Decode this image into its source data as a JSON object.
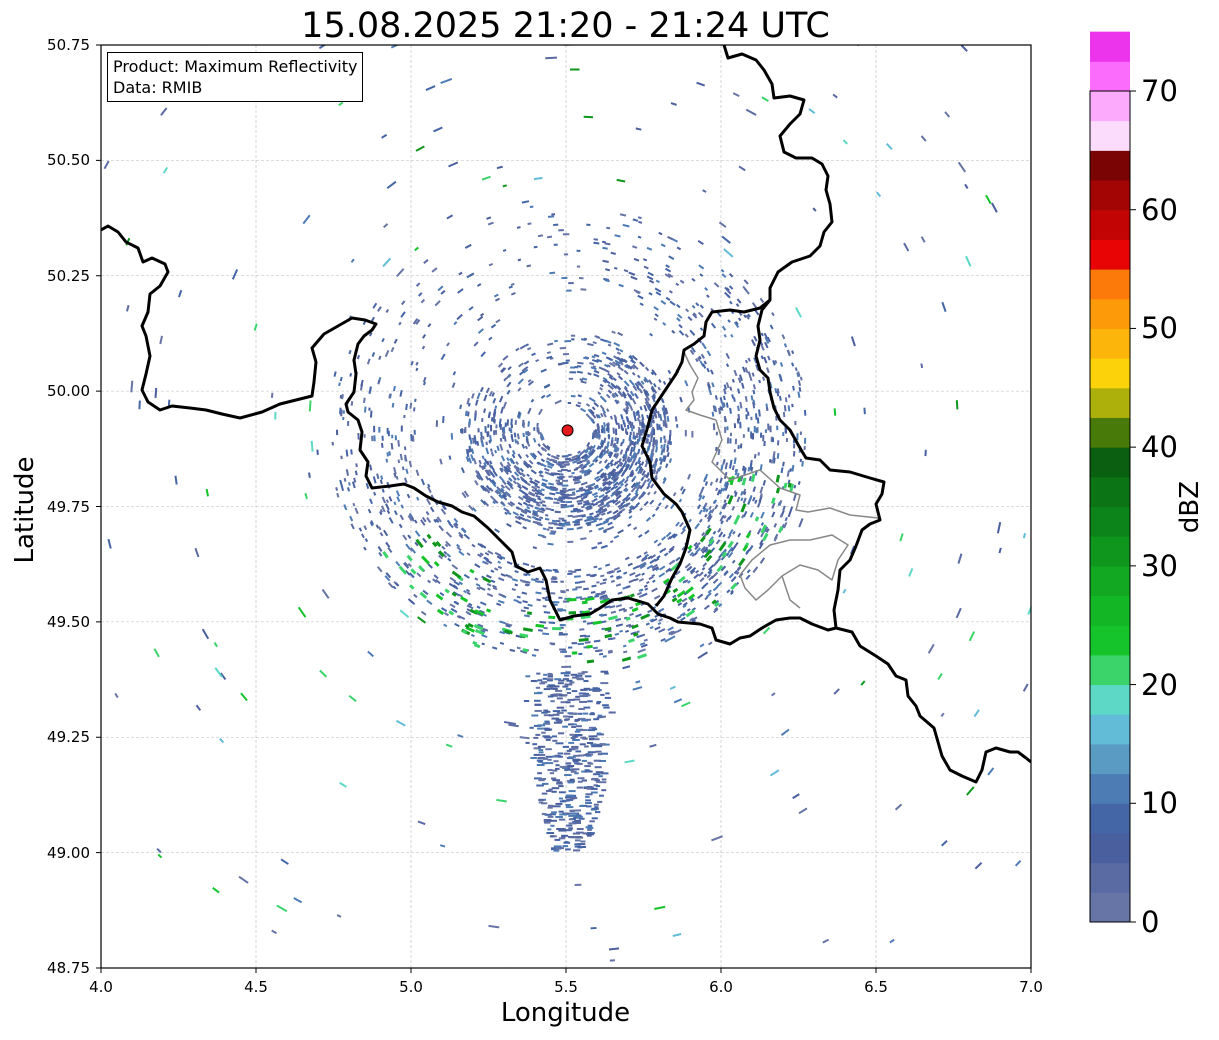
{
  "title": "15.08.2025 21:20 - 21:24 UTC",
  "info_box": {
    "product": "Product: Maximum Reflectivity",
    "data": "Data: RMIB"
  },
  "map": {
    "xlabel": "Longitude",
    "ylabel": "Latitude",
    "lon_range": [
      4.0,
      7.0
    ],
    "lat_range": [
      48.75,
      50.75
    ],
    "x_ticks": [
      "4.0",
      "4.5",
      "5.0",
      "5.5",
      "6.0",
      "6.5",
      "7.0"
    ],
    "y_ticks": [
      "50.75",
      "50.50",
      "50.25",
      "50.00",
      "49.75",
      "49.50",
      "49.25",
      "49.00",
      "48.75"
    ],
    "grid": true,
    "radar_site": {
      "lon": 5.505,
      "lat": 49.915
    },
    "marker_color": "#e31a1c"
  },
  "colorbar": {
    "label": "dBZ",
    "ticks": [
      "0",
      "10",
      "20",
      "30",
      "40",
      "50",
      "60",
      "70"
    ],
    "range": [
      0,
      70
    ],
    "step": 2.5,
    "colors": [
      "#6674a6",
      "#5a6aa3",
      "#4a5f9e",
      "#4466a6",
      "#4d7cb5",
      "#5a9bc4",
      "#62bcd8",
      "#5dd8c7",
      "#3ad46a",
      "#14c42a",
      "#13b726",
      "#12a822",
      "#0f961d",
      "#0c8419",
      "#0b7414",
      "#0a5f10",
      "#487a0a",
      "#adb00a",
      "#fcd30a",
      "#fcb50a",
      "#fc9a0a",
      "#fc7a0a",
      "#e80404",
      "#c20404",
      "#a30404",
      "#7a0404",
      "#fcdcfc",
      "#fcaafc",
      "#fc6cfc",
      "#ec34ec"
    ]
  }
}
